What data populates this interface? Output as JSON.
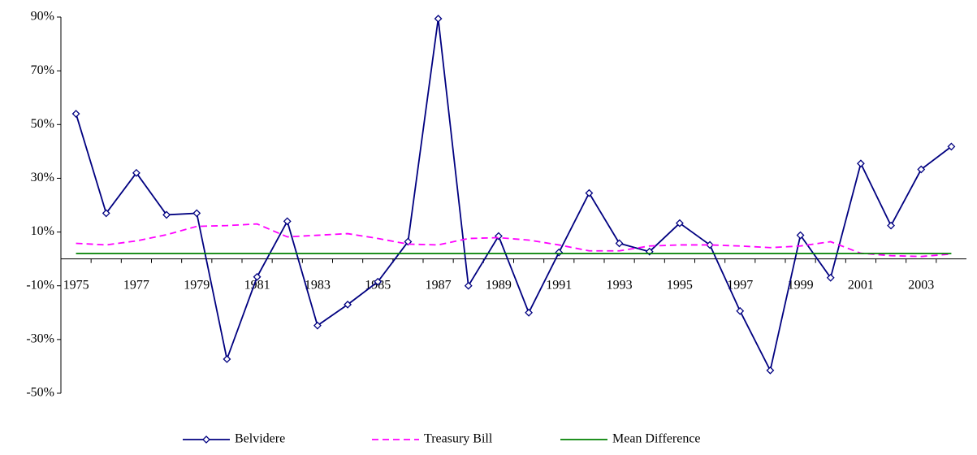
{
  "chart_data": {
    "type": "line",
    "categories": [
      "1975",
      null,
      "1977",
      null,
      "1979",
      null,
      "1981",
      null,
      "1983",
      null,
      "1985",
      null,
      "1987",
      null,
      "1989",
      null,
      "1991",
      null,
      "1993",
      null,
      "1995",
      null,
      "1997",
      null,
      "1999",
      null,
      "2001",
      null,
      "2003",
      null
    ],
    "series": [
      {
        "name": "Belvidere",
        "color": "#000080",
        "marker": "diamond",
        "style": "solid",
        "values": [
          54,
          17,
          32,
          16.4,
          17,
          -37.3,
          -6.7,
          14,
          -24.8,
          -17,
          -8.5,
          6.4,
          89.4,
          -10,
          8.5,
          -20,
          2.4,
          24.5,
          5.8,
          2.7,
          13.3,
          5.2,
          -19.4,
          -41.5,
          8.8,
          -7,
          35.5,
          12.4,
          33.3,
          41.8
        ]
      },
      {
        "name": "Treasury Bill",
        "color": "#ff00ff",
        "style": "dashed",
        "values": [
          5.8,
          5.2,
          6.7,
          9,
          12.1,
          12.4,
          13,
          8.2,
          8.8,
          9.4,
          7.6,
          5.5,
          5.2,
          7.6,
          7.9,
          7,
          5.2,
          3,
          3,
          4.8,
          5.2,
          5.2,
          4.8,
          4.2,
          4.8,
          6.4,
          2.1,
          1.2,
          0.9,
          1.8
        ]
      },
      {
        "name": "Mean Difference",
        "color": "#008000",
        "style": "solid",
        "values": [
          2,
          2,
          2,
          2,
          2,
          2,
          2,
          2,
          2,
          2,
          2,
          2,
          2,
          2,
          2,
          2,
          2,
          2,
          2,
          2,
          2,
          2,
          2,
          2,
          2,
          2,
          2,
          2,
          2,
          2
        ]
      }
    ],
    "ylim": [
      -50,
      90
    ],
    "yticks": [
      {
        "value": -50,
        "label": "-50%"
      },
      {
        "value": -30,
        "label": "-30%"
      },
      {
        "value": -10,
        "label": "-10%"
      },
      {
        "value": 10,
        "label": "10%"
      },
      {
        "value": 30,
        "label": "30%"
      },
      {
        "value": 50,
        "label": "50%"
      },
      {
        "value": 70,
        "label": "70%"
      },
      {
        "value": 90,
        "label": "90%"
      }
    ],
    "grid": false,
    "legend": "bottom"
  }
}
